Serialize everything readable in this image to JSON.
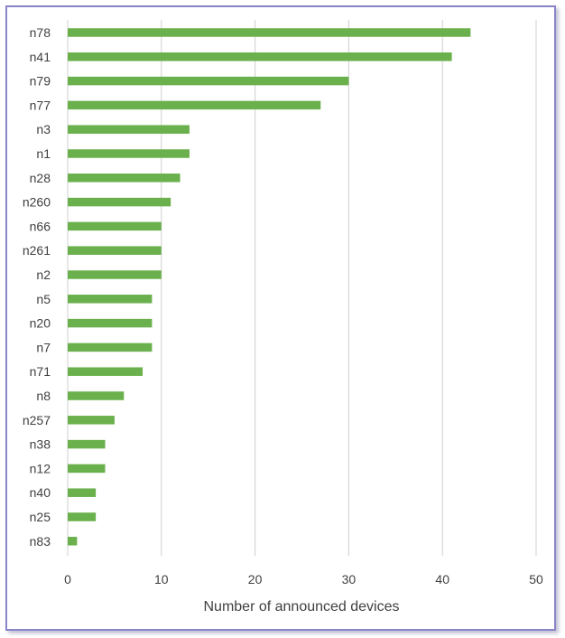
{
  "chart_data": {
    "type": "bar",
    "orientation": "horizontal",
    "categories": [
      "n78",
      "n41",
      "n79",
      "n77",
      "n3",
      "n1",
      "n28",
      "n260",
      "n66",
      "n261",
      "n2",
      "n5",
      "n20",
      "n7",
      "n71",
      "n8",
      "n257",
      "n38",
      "n12",
      "n40",
      "n25",
      "n83"
    ],
    "values": [
      43,
      41,
      30,
      27,
      13,
      13,
      12,
      11,
      10,
      10,
      10,
      9,
      9,
      9,
      8,
      6,
      5,
      4,
      4,
      3,
      3,
      1
    ],
    "xlabel": "Number of announced devices",
    "ylabel": "",
    "xlim": [
      0,
      50
    ],
    "xticks": [
      0,
      10,
      20,
      30,
      40,
      50
    ],
    "grid": "vertical",
    "colors": {
      "bar": "#6ab04c",
      "grid": "#d0d0d0",
      "frame": "#8a84c8",
      "text": "#404040"
    }
  }
}
